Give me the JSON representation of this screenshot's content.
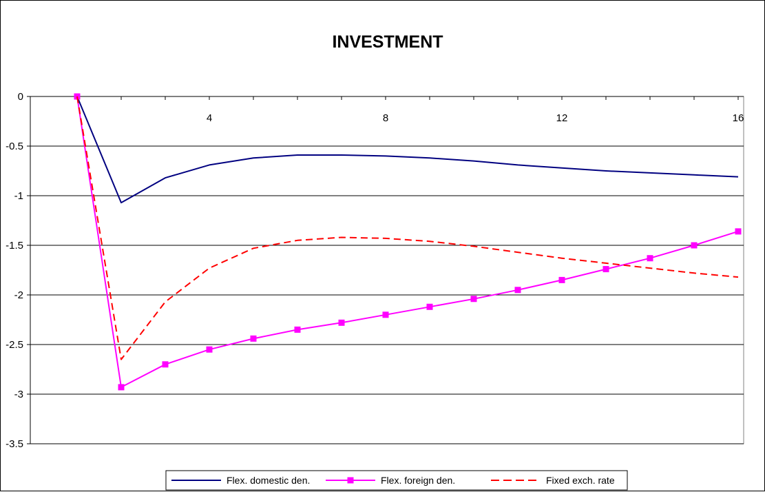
{
  "chart_data": {
    "type": "line",
    "title": "INVESTMENT",
    "x": [
      0,
      1,
      2,
      3,
      4,
      5,
      6,
      7,
      8,
      9,
      10,
      11,
      12,
      13,
      14,
      15
    ],
    "xticks": [
      4,
      8,
      12,
      16
    ],
    "xtick_labels": [
      "4",
      "8",
      "12",
      "16"
    ],
    "xlim": [
      0,
      15
    ],
    "ylim": [
      -3.5,
      0
    ],
    "yticks": [
      0,
      -0.5,
      -1,
      -1.5,
      -2,
      -2.5,
      -3,
      -3.5
    ],
    "ytick_labels": [
      "0",
      "-0.5",
      "-1",
      "-1.5",
      "-2",
      "-2.5",
      "-3",
      "-3.5"
    ],
    "grid": "horizontal",
    "legend_position": "bottom",
    "series": [
      {
        "name": "Flex. domestic den.",
        "color": "#000080",
        "style": "solid",
        "values": [
          0,
          -1.07,
          -0.82,
          -0.69,
          -0.62,
          -0.59,
          -0.59,
          -0.6,
          -0.62,
          -0.65,
          -0.69,
          -0.72,
          -0.75,
          -0.77,
          -0.79,
          -0.81
        ]
      },
      {
        "name": "Flex. foreign den.",
        "color": "#ff00ff",
        "style": "solid-square-markers",
        "values": [
          0,
          -2.93,
          -2.7,
          -2.55,
          -2.44,
          -2.35,
          -2.28,
          -2.2,
          -2.12,
          -2.04,
          -1.95,
          -1.85,
          -1.74,
          -1.63,
          -1.5,
          -1.36
        ]
      },
      {
        "name": "Fixed exch. rate",
        "color": "#ff0000",
        "style": "dashed",
        "values": [
          0,
          -2.65,
          -2.07,
          -1.73,
          -1.53,
          -1.45,
          -1.42,
          -1.43,
          -1.46,
          -1.51,
          -1.57,
          -1.63,
          -1.68,
          -1.73,
          -1.78,
          -1.82
        ]
      }
    ]
  }
}
